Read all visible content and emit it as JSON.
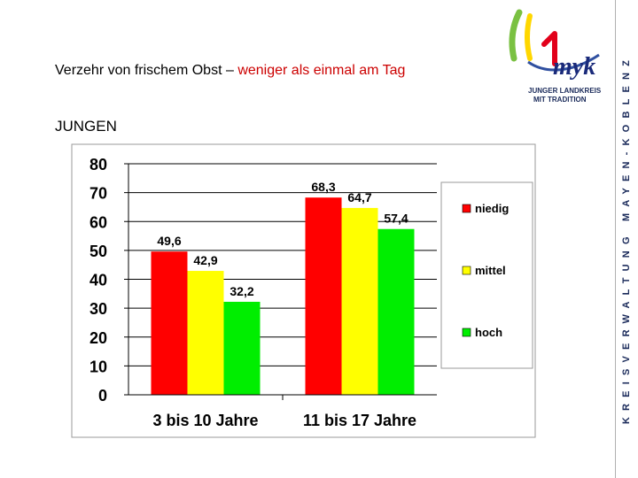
{
  "header": {
    "title_main": "Verzehr von frischem Obst – ",
    "title_highlight": "weniger als einmal am Tag",
    "subtitle": "JUNGEN",
    "side_text": "KREISVERWALTUNG MAYEN-KOBLENZ"
  },
  "logo": {
    "name": "myk",
    "line1": "JUNGER LANDKREIS",
    "line2": "MIT TRADITION"
  },
  "colors": {
    "niedig": "#ff0000",
    "mittel": "#ffff00",
    "hoch": "#00ee00",
    "plot_bg": "#ffffff"
  },
  "chart_data": {
    "type": "bar",
    "title": "",
    "xlabel": "",
    "ylabel": "",
    "categories": [
      "3 bis 10 Jahre",
      "11 bis 17 Jahre"
    ],
    "series": [
      {
        "name": "niedig",
        "values": [
          49.6,
          68.3
        ],
        "labels": [
          "49,6",
          "68,3"
        ]
      },
      {
        "name": "mittel",
        "values": [
          42.9,
          64.7
        ],
        "labels": [
          "42,9",
          "64,7"
        ]
      },
      {
        "name": "hoch",
        "values": [
          32.2,
          57.4
        ],
        "labels": [
          "32,2",
          "57,4"
        ]
      }
    ],
    "yticks": [
      "0",
      "10",
      "20",
      "30",
      "40",
      "50",
      "60",
      "70",
      "80"
    ],
    "ylim": [
      0,
      80
    ],
    "grid": true,
    "legend": "right"
  }
}
